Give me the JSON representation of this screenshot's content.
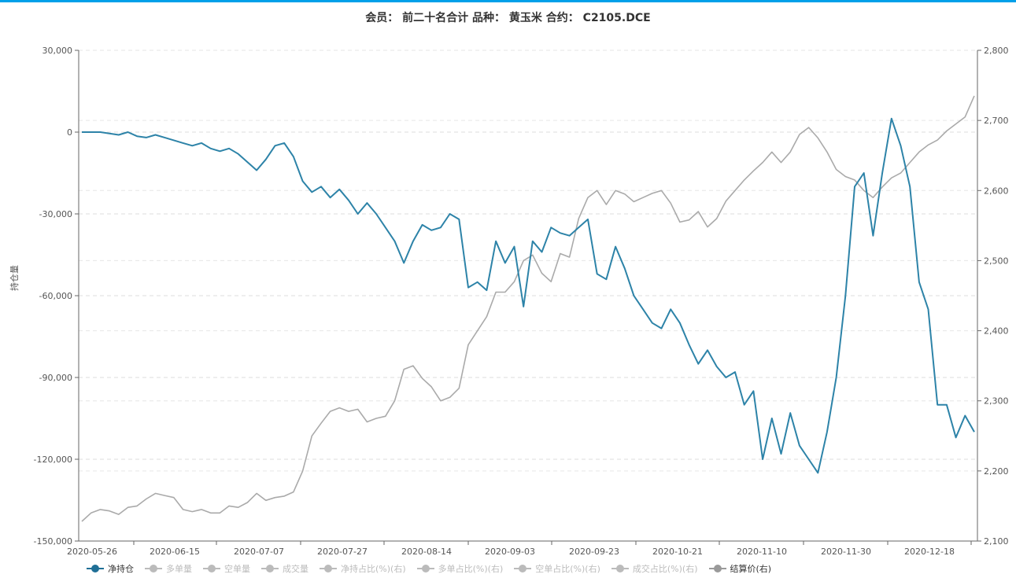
{
  "chart_data": {
    "type": "line",
    "title": "会员：  前二十名合计 品种：  黄玉米 合约：  C2105.DCE",
    "ylabel": "持仓量",
    "ylim_left": [
      -150000,
      30000
    ],
    "ylim_right": [
      2100,
      2800
    ],
    "left_ticks": [
      "30,000",
      "0",
      "-30,000",
      "-60,000",
      "-90,000",
      "-120,000",
      "-150,000"
    ],
    "right_ticks": [
      "2,800",
      "2,700",
      "2,600",
      "2,500",
      "2,400",
      "2,300",
      "2,200",
      "2,100"
    ],
    "x_ticks": [
      "2020-05-26",
      "2020-06-15",
      "2020-07-07",
      "2020-07-27",
      "2020-08-14",
      "2020-09-03",
      "2020-09-23",
      "2020-10-21",
      "2020-11-10",
      "2020-11-30",
      "2020-12-18"
    ],
    "series": [
      {
        "name": "净持仓",
        "axis": "left",
        "color": "#2d83a8",
        "values": [
          0,
          0,
          0,
          -500,
          -1000,
          0,
          -1500,
          -2000,
          -1000,
          -2000,
          -3000,
          -4000,
          -5000,
          -4000,
          -6000,
          -7000,
          -6000,
          -8000,
          -11000,
          -14000,
          -10000,
          -5000,
          -4000,
          -9000,
          -18000,
          -22000,
          -20000,
          -24000,
          -21000,
          -25000,
          -30000,
          -26000,
          -30000,
          -35000,
          -40000,
          -48000,
          -40000,
          -34000,
          -36000,
          -35000,
          -30000,
          -32000,
          -57000,
          -55000,
          -58000,
          -40000,
          -48000,
          -42000,
          -64000,
          -40000,
          -44000,
          -35000,
          -37000,
          -38000,
          -35000,
          -32000,
          -52000,
          -54000,
          -42000,
          -50000,
          -60000,
          -65000,
          -70000,
          -72000,
          -65000,
          -70000,
          -78000,
          -85000,
          -80000,
          -86000,
          -90000,
          -88000,
          -100000,
          -95000,
          -120000,
          -105000,
          -118000,
          -103000,
          -115000,
          -120000,
          -125000,
          -110000,
          -90000,
          -60000,
          -20000,
          -15000,
          -38000,
          -15000,
          5000,
          -5000,
          -20000,
          -55000,
          -65000,
          -100000,
          -100000,
          -112000,
          -104000,
          -110000
        ]
      },
      {
        "name": "多单量",
        "axis": "left",
        "color": "#cccccc",
        "hidden": true
      },
      {
        "name": "空单量",
        "axis": "left",
        "color": "#cccccc",
        "hidden": true
      },
      {
        "name": "成交量",
        "axis": "left",
        "color": "#cccccc",
        "hidden": true
      },
      {
        "name": "净持占比(%)(右)",
        "axis": "right",
        "color": "#cccccc",
        "hidden": true
      },
      {
        "name": "多单占比(%)(右)",
        "axis": "right",
        "color": "#cccccc",
        "hidden": true
      },
      {
        "name": "空单占比(%)(右)",
        "axis": "right",
        "color": "#cccccc",
        "hidden": true
      },
      {
        "name": "成交占比(%)(右)",
        "axis": "right",
        "color": "#cccccc",
        "hidden": true
      },
      {
        "name": "结算价(右)",
        "axis": "right",
        "color": "#aaaaaa",
        "values": [
          2128,
          2140,
          2145,
          2143,
          2138,
          2148,
          2150,
          2160,
          2168,
          2165,
          2162,
          2145,
          2142,
          2145,
          2140,
          2140,
          2150,
          2148,
          2155,
          2168,
          2158,
          2162,
          2164,
          2170,
          2200,
          2250,
          2268,
          2285,
          2290,
          2285,
          2288,
          2270,
          2275,
          2278,
          2300,
          2345,
          2350,
          2332,
          2320,
          2300,
          2305,
          2318,
          2380,
          2400,
          2420,
          2455,
          2455,
          2470,
          2500,
          2508,
          2482,
          2470,
          2510,
          2505,
          2560,
          2590,
          2600,
          2580,
          2600,
          2595,
          2584,
          2590,
          2596,
          2600,
          2582,
          2555,
          2558,
          2570,
          2548,
          2560,
          2585,
          2600,
          2615,
          2628,
          2640,
          2655,
          2640,
          2655,
          2680,
          2690,
          2675,
          2655,
          2630,
          2620,
          2615,
          2600,
          2590,
          2605,
          2618,
          2625,
          2640,
          2655,
          2665,
          2672,
          2685,
          2695,
          2705,
          2735
        ]
      }
    ]
  }
}
